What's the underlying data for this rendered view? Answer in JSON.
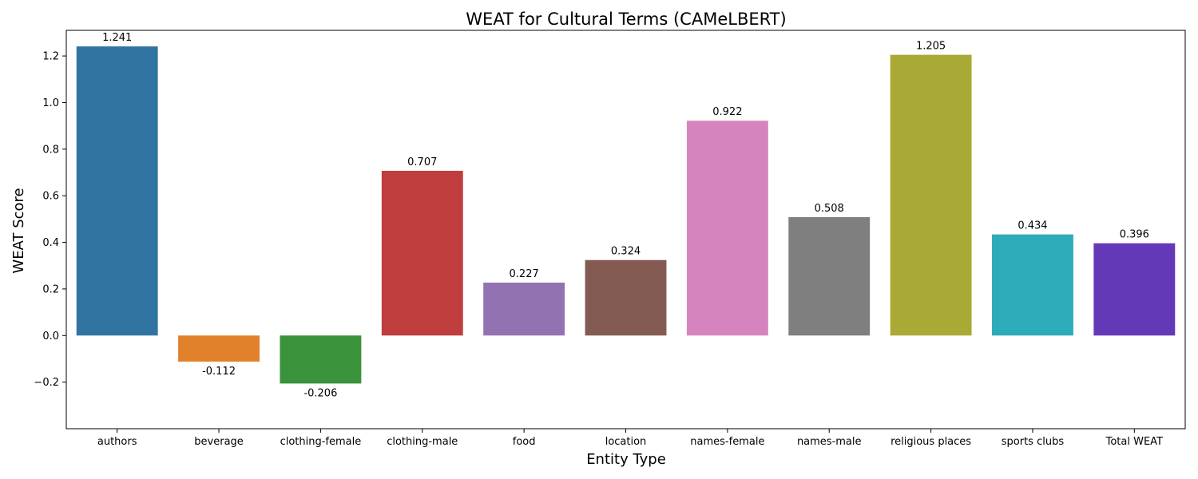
{
  "chart_data": {
    "type": "bar",
    "title": "WEAT for Cultural Terms (CAMeLBERT)",
    "xlabel": "Entity Type",
    "ylabel": "WEAT Score",
    "categories": [
      "authors",
      "beverage",
      "clothing-female",
      "clothing-male",
      "food",
      "location",
      "names-female",
      "names-male",
      "religious places",
      "sports clubs",
      "Total WEAT"
    ],
    "values": [
      1.241,
      -0.112,
      -0.206,
      0.707,
      0.227,
      0.324,
      0.922,
      0.508,
      1.205,
      0.434,
      0.396
    ],
    "value_labels": [
      "1.241",
      "-0.112",
      "-0.206",
      "0.707",
      "0.227",
      "0.324",
      "0.922",
      "0.508",
      "1.205",
      "0.434",
      "0.396"
    ],
    "colors": [
      "#3274a1",
      "#e1812c",
      "#3a923a",
      "#c03d3e",
      "#9372b2",
      "#845b53",
      "#d684bd",
      "#7f7f7f",
      "#a9aa35",
      "#2eabb8",
      "#6439b7"
    ],
    "ylim": [
      -0.4,
      1.31
    ],
    "yticks": [
      -0.2,
      0.0,
      0.2,
      0.4,
      0.6,
      0.8,
      1.0,
      1.2
    ],
    "ytick_labels": [
      "−0.2",
      "0.0",
      "0.2",
      "0.4",
      "0.6",
      "0.8",
      "1.0",
      "1.2"
    ],
    "grid": false,
    "legend": "none"
  }
}
